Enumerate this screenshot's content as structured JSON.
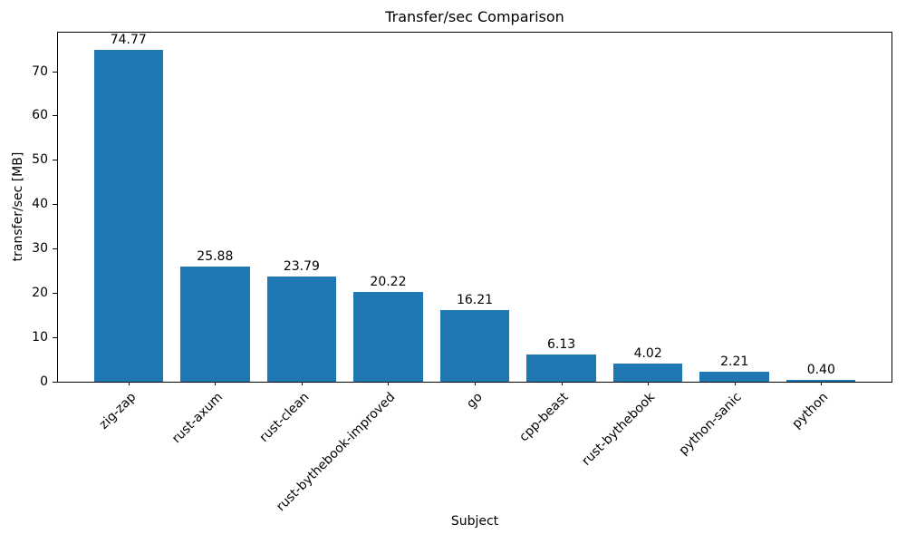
{
  "chart_data": {
    "type": "bar",
    "title": "Transfer/sec Comparison",
    "xlabel": "Subject",
    "ylabel": "transfer/sec [MB]",
    "categories": [
      "zig-zap",
      "rust-axum",
      "rust-clean",
      "rust-bythebook-improved",
      "go",
      "cpp-beast",
      "rust-bythebook",
      "python-sanic",
      "python"
    ],
    "values": [
      74.77,
      25.88,
      23.79,
      20.22,
      16.21,
      6.13,
      4.02,
      2.21,
      0.4
    ],
    "value_labels": [
      "74.77",
      "25.88",
      "23.79",
      "20.22",
      "16.21",
      "6.13",
      "4.02",
      "2.21",
      "0.40"
    ],
    "bar_color": "#1f77b4",
    "axis_color": "#000000",
    "yticks": [
      0,
      10,
      20,
      30,
      40,
      50,
      60,
      70
    ],
    "ylim": [
      0,
      78.7
    ],
    "grid": false,
    "legend": null,
    "x_tick_rotation_deg": 45
  }
}
